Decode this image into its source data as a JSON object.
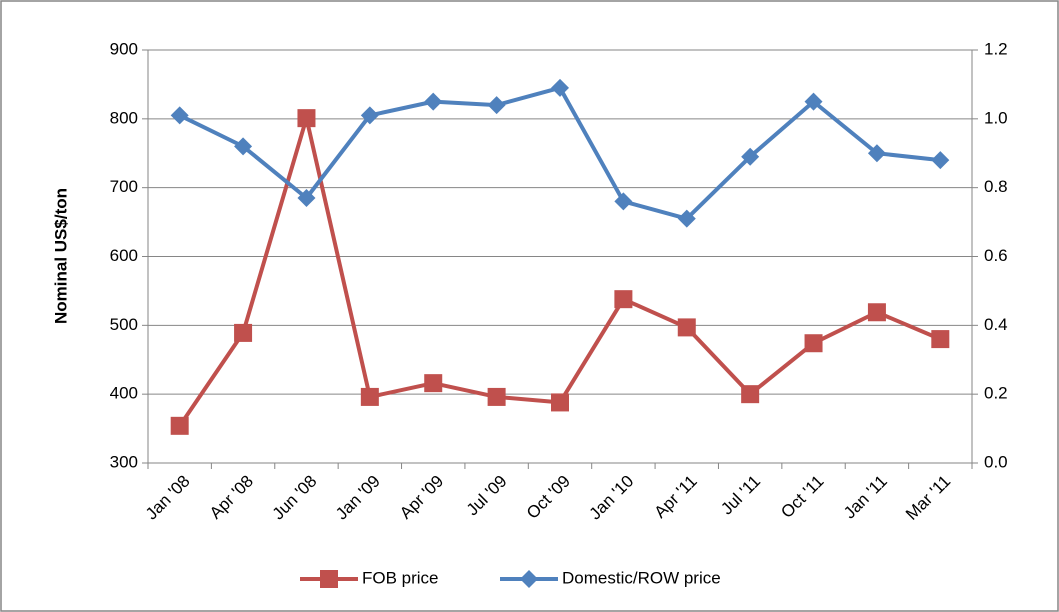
{
  "chart_data": {
    "type": "line",
    "categories": [
      "Jan '08",
      "Apr '08",
      "Jun '08",
      "Jan '09",
      "Apr '09",
      "Jul '09",
      "Oct '09",
      "Jan '10",
      "Apr '11",
      "Jul '11",
      "Oct '11",
      "Jan '11",
      "Mar '11"
    ],
    "ylabel": "Nominal US$/ton",
    "ylim": [
      300,
      900
    ],
    "yticks": [
      300,
      400,
      500,
      600,
      700,
      800,
      900
    ],
    "y2lim": [
      0,
      1.2
    ],
    "y2ticks": [
      {
        "value": 0,
        "label": "0.0"
      },
      0.2,
      0.4,
      0.6,
      0.8,
      {
        "value": 1,
        "label": "1.0"
      },
      1.2
    ],
    "grid": true,
    "legend": "bottom",
    "series": [
      {
        "name": "FOB price",
        "color": "#c0504d",
        "marker": "square",
        "values": [
          354,
          489,
          801,
          396,
          416,
          396,
          388,
          538,
          497,
          400,
          474,
          519,
          480
        ]
      },
      {
        "name": "Domestic/ROW price",
        "color": "#4f81bd",
        "marker": "diamond",
        "axis": "y2",
        "values": [
          1.01,
          0.92,
          0.77,
          1.01,
          1.05,
          1.04,
          1.09,
          0.76,
          0.71,
          0.89,
          1.05,
          0.9,
          0.88
        ]
      }
    ]
  }
}
